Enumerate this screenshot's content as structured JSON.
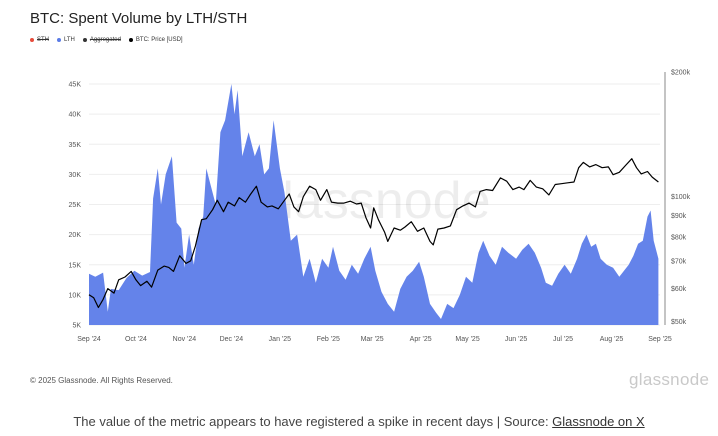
{
  "header": {
    "title": "BTC: Spent Volume by LTH/STH"
  },
  "legend": [
    {
      "label": "STH",
      "color": "#e74c3c",
      "struck": true
    },
    {
      "label": "LTH",
      "color": "#5a7be6",
      "struck": false
    },
    {
      "label": "Aggregated",
      "color": "#333333",
      "struck": true
    },
    {
      "label": "BTC: Price [USD]",
      "color": "#000000",
      "struck": false
    }
  ],
  "watermark": "glassnode",
  "footer": {
    "copyright": "© 2025 Glassnode. All Rights Reserved.",
    "brand": "glassnode"
  },
  "caption": {
    "text": "The value of the metric appears to have registered a spike in recent days | Source: ",
    "source_link": "Glassnode on X"
  },
  "chart_data": {
    "type": "area",
    "x_range": [
      "2024-09-01",
      "2025-09-01"
    ],
    "x_ticks": [
      "Sep '24",
      "Oct '24",
      "Nov '24",
      "Dec '24",
      "Jan '25",
      "Feb '25",
      "Mar '25",
      "Apr '25",
      "May '25",
      "Jun '25",
      "Jul '25",
      "Aug '25",
      "Sep '25"
    ],
    "y_left": {
      "range": [
        5000,
        47000
      ],
      "ticks": [
        "5K",
        "10K",
        "15K",
        "20K",
        "25K",
        "30K",
        "35K",
        "40K",
        "45K"
      ],
      "tick_values": [
        5000,
        10000,
        15000,
        20000,
        25000,
        30000,
        35000,
        40000,
        45000
      ]
    },
    "y_right": {
      "scale": "log",
      "range": [
        49000,
        200000
      ],
      "ticks": [
        "$50k",
        "$60k",
        "$70k",
        "$80k",
        "$90k",
        "$100k",
        "$200k"
      ],
      "tick_values": [
        50000,
        60000,
        70000,
        80000,
        90000,
        100000,
        200000
      ]
    },
    "colors": {
      "lth": "#6483ea",
      "price": "#000000",
      "axis": "#888888"
    },
    "series": [
      {
        "name": "LTH",
        "values": [
          [
            "2024-09-01",
            13500
          ],
          [
            "2024-09-05",
            13000
          ],
          [
            "2024-09-10",
            13700
          ],
          [
            "2024-09-13",
            7200
          ],
          [
            "2024-09-15",
            11000
          ],
          [
            "2024-09-20",
            10800
          ],
          [
            "2024-09-25",
            12800
          ],
          [
            "2024-09-30",
            14000
          ],
          [
            "2024-10-05",
            13200
          ],
          [
            "2024-10-10",
            13800
          ],
          [
            "2024-10-12",
            26000
          ],
          [
            "2024-10-15",
            31000
          ],
          [
            "2024-10-17",
            25000
          ],
          [
            "2024-10-20",
            30000
          ],
          [
            "2024-10-24",
            33000
          ],
          [
            "2024-10-27",
            22000
          ],
          [
            "2024-10-30",
            21000
          ],
          [
            "2024-11-01",
            14500
          ],
          [
            "2024-11-04",
            20000
          ],
          [
            "2024-11-07",
            15000
          ],
          [
            "2024-11-10",
            21000
          ],
          [
            "2024-11-13",
            23000
          ],
          [
            "2024-11-15",
            31000
          ],
          [
            "2024-11-18",
            28000
          ],
          [
            "2024-11-21",
            25000
          ],
          [
            "2024-11-24",
            37000
          ],
          [
            "2024-11-27",
            39000
          ],
          [
            "2024-12-01",
            45000
          ],
          [
            "2024-12-03",
            40000
          ],
          [
            "2024-12-05",
            44000
          ],
          [
            "2024-12-08",
            33000
          ],
          [
            "2024-12-12",
            37000
          ],
          [
            "2024-12-16",
            33000
          ],
          [
            "2024-12-19",
            35000
          ],
          [
            "2024-12-22",
            30000
          ],
          [
            "2024-12-25",
            31000
          ],
          [
            "2024-12-28",
            39000
          ],
          [
            "2025-01-01",
            31000
          ],
          [
            "2025-01-04",
            27000
          ],
          [
            "2025-01-08",
            19000
          ],
          [
            "2025-01-12",
            20000
          ],
          [
            "2025-01-16",
            13000
          ],
          [
            "2025-01-20",
            16000
          ],
          [
            "2025-01-24",
            12000
          ],
          [
            "2025-01-28",
            16000
          ],
          [
            "2025-02-01",
            14500
          ],
          [
            "2025-02-04",
            18000
          ],
          [
            "2025-02-08",
            14000
          ],
          [
            "2025-02-12",
            12500
          ],
          [
            "2025-02-16",
            15000
          ],
          [
            "2025-02-20",
            13500
          ],
          [
            "2025-02-24",
            16000
          ],
          [
            "2025-02-28",
            18000
          ],
          [
            "2025-03-03",
            14000
          ],
          [
            "2025-03-07",
            10500
          ],
          [
            "2025-03-11",
            8500
          ],
          [
            "2025-03-15",
            7200
          ],
          [
            "2025-03-19",
            11000
          ],
          [
            "2025-03-23",
            13000
          ],
          [
            "2025-03-27",
            14000
          ],
          [
            "2025-03-31",
            15500
          ],
          [
            "2025-04-03",
            13000
          ],
          [
            "2025-04-07",
            8500
          ],
          [
            "2025-04-11",
            7000
          ],
          [
            "2025-04-14",
            6000
          ],
          [
            "2025-04-18",
            8500
          ],
          [
            "2025-04-22",
            7800
          ],
          [
            "2025-04-26",
            10000
          ],
          [
            "2025-04-30",
            13000
          ],
          [
            "2025-05-04",
            12000
          ],
          [
            "2025-05-08",
            17000
          ],
          [
            "2025-05-11",
            19000
          ],
          [
            "2025-05-15",
            16500
          ],
          [
            "2025-05-19",
            15000
          ],
          [
            "2025-05-23",
            18000
          ],
          [
            "2025-05-27",
            17000
          ],
          [
            "2025-06-01",
            16000
          ],
          [
            "2025-06-05",
            17500
          ],
          [
            "2025-06-09",
            18500
          ],
          [
            "2025-06-13",
            17000
          ],
          [
            "2025-06-17",
            14500
          ],
          [
            "2025-06-20",
            12000
          ],
          [
            "2025-06-24",
            11500
          ],
          [
            "2025-06-28",
            13500
          ],
          [
            "2025-07-02",
            15000
          ],
          [
            "2025-07-06",
            13500
          ],
          [
            "2025-07-10",
            16000
          ],
          [
            "2025-07-13",
            18500
          ],
          [
            "2025-07-16",
            20000
          ],
          [
            "2025-07-19",
            18000
          ],
          [
            "2025-07-22",
            18500
          ],
          [
            "2025-07-25",
            16000
          ],
          [
            "2025-07-29",
            15000
          ],
          [
            "2025-08-02",
            14500
          ],
          [
            "2025-08-06",
            13000
          ],
          [
            "2025-08-09",
            14000
          ],
          [
            "2025-08-12",
            15000
          ],
          [
            "2025-08-15",
            16500
          ],
          [
            "2025-08-18",
            18500
          ],
          [
            "2025-08-21",
            19000
          ],
          [
            "2025-08-24",
            23000
          ],
          [
            "2025-08-26",
            24000
          ],
          [
            "2025-08-28",
            19000
          ],
          [
            "2025-08-31",
            16000
          ]
        ]
      },
      {
        "name": "BTC: Price [USD]",
        "values": [
          [
            "2024-09-01",
            58000
          ],
          [
            "2024-09-04",
            57000
          ],
          [
            "2024-09-07",
            54000
          ],
          [
            "2024-09-10",
            56500
          ],
          [
            "2024-09-13",
            60000
          ],
          [
            "2024-09-17",
            58500
          ],
          [
            "2024-09-20",
            63000
          ],
          [
            "2024-09-24",
            64000
          ],
          [
            "2024-09-28",
            66000
          ],
          [
            "2024-10-01",
            63000
          ],
          [
            "2024-10-04",
            61000
          ],
          [
            "2024-10-08",
            62500
          ],
          [
            "2024-10-11",
            60500
          ],
          [
            "2024-10-15",
            66500
          ],
          [
            "2024-10-19",
            68000
          ],
          [
            "2024-10-22",
            67500
          ],
          [
            "2024-10-25",
            66000
          ],
          [
            "2024-10-29",
            72000
          ],
          [
            "2024-11-02",
            69000
          ],
          [
            "2024-11-05",
            70000
          ],
          [
            "2024-11-08",
            76000
          ],
          [
            "2024-11-12",
            88000
          ],
          [
            "2024-11-15",
            88500
          ],
          [
            "2024-11-19",
            93000
          ],
          [
            "2024-11-22",
            98000
          ],
          [
            "2024-11-26",
            92000
          ],
          [
            "2024-11-29",
            97000
          ],
          [
            "2024-12-03",
            95000
          ],
          [
            "2024-12-06",
            99500
          ],
          [
            "2024-12-10",
            97000
          ],
          [
            "2024-12-13",
            101000
          ],
          [
            "2024-12-17",
            106000
          ],
          [
            "2024-12-20",
            97000
          ],
          [
            "2024-12-24",
            94500
          ],
          [
            "2024-12-27",
            95000
          ],
          [
            "2024-12-31",
            93500
          ],
          [
            "2025-01-04",
            98000
          ],
          [
            "2025-01-07",
            101500
          ],
          [
            "2025-01-10",
            94500
          ],
          [
            "2025-01-13",
            92000
          ],
          [
            "2025-01-16",
            100000
          ],
          [
            "2025-01-20",
            106000
          ],
          [
            "2025-01-24",
            104000
          ],
          [
            "2025-01-27",
            98000
          ],
          [
            "2025-01-31",
            104000
          ],
          [
            "2025-02-03",
            97000
          ],
          [
            "2025-02-07",
            96500
          ],
          [
            "2025-02-11",
            96500
          ],
          [
            "2025-02-15",
            97500
          ],
          [
            "2025-02-19",
            96000
          ],
          [
            "2025-02-22",
            96500
          ],
          [
            "2025-02-25",
            89000
          ],
          [
            "2025-02-28",
            84000
          ],
          [
            "2025-03-02",
            94000
          ],
          [
            "2025-03-05",
            88000
          ],
          [
            "2025-03-09",
            82000
          ],
          [
            "2025-03-11",
            78000
          ],
          [
            "2025-03-15",
            84000
          ],
          [
            "2025-03-19",
            83000
          ],
          [
            "2025-03-22",
            84500
          ],
          [
            "2025-03-26",
            87000
          ],
          [
            "2025-03-30",
            82500
          ],
          [
            "2025-04-03",
            84000
          ],
          [
            "2025-04-07",
            78000
          ],
          [
            "2025-04-09",
            76500
          ],
          [
            "2025-04-12",
            83500
          ],
          [
            "2025-04-16",
            84000
          ],
          [
            "2025-04-20",
            85000
          ],
          [
            "2025-04-24",
            93000
          ],
          [
            "2025-04-28",
            95000
          ],
          [
            "2025-05-02",
            96500
          ],
          [
            "2025-05-06",
            94500
          ],
          [
            "2025-05-09",
            103000
          ],
          [
            "2025-05-13",
            104000
          ],
          [
            "2025-05-17",
            103500
          ],
          [
            "2025-05-22",
            111000
          ],
          [
            "2025-05-26",
            109000
          ],
          [
            "2025-05-30",
            104000
          ],
          [
            "2025-06-03",
            105500
          ],
          [
            "2025-06-06",
            104000
          ],
          [
            "2025-06-10",
            109500
          ],
          [
            "2025-06-14",
            105500
          ],
          [
            "2025-06-18",
            104500
          ],
          [
            "2025-06-22",
            101000
          ],
          [
            "2025-06-26",
            107000
          ],
          [
            "2025-06-30",
            107500
          ],
          [
            "2025-07-04",
            108000
          ],
          [
            "2025-07-08",
            108500
          ],
          [
            "2025-07-11",
            117500
          ],
          [
            "2025-07-14",
            121000
          ],
          [
            "2025-07-18",
            118000
          ],
          [
            "2025-07-22",
            119500
          ],
          [
            "2025-07-26",
            117500
          ],
          [
            "2025-07-30",
            118000
          ],
          [
            "2025-08-02",
            113000
          ],
          [
            "2025-08-06",
            114500
          ],
          [
            "2025-08-10",
            119000
          ],
          [
            "2025-08-14",
            123500
          ],
          [
            "2025-08-17",
            117500
          ],
          [
            "2025-08-20",
            113500
          ],
          [
            "2025-08-24",
            115000
          ],
          [
            "2025-08-27",
            111500
          ],
          [
            "2025-08-31",
            108500
          ]
        ]
      }
    ]
  }
}
